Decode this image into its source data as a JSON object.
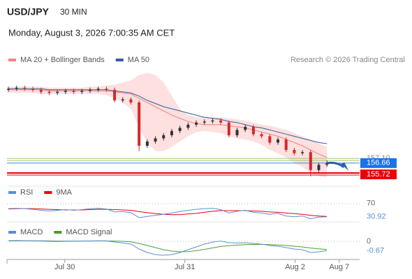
{
  "header": {
    "symbol": "USD/JPY",
    "timeframe": "30 MIN",
    "datetime": "Monday, August 3, 2026 7:00:35 AM CET",
    "source": "Research © 2026 Trading Central"
  },
  "chart_data": [
    {
      "type": "candlestick",
      "open": [
        163.6,
        163.7,
        163.8,
        163.7,
        163.6,
        163.4,
        163.3,
        163.4,
        163.5,
        163.4,
        163.5,
        163.6,
        163.7,
        163.6,
        162.6,
        162.7,
        162.4,
        158.3,
        158.7,
        159.0,
        159.3,
        159.7,
        160.0,
        160.3,
        160.5,
        160.6,
        160.7,
        160.5,
        159.3,
        159.8,
        160.1,
        159.4,
        159.2,
        158.6,
        158.9,
        157.9,
        157.6,
        157.7,
        156.0,
        156.5
      ],
      "high": [
        163.9,
        164.0,
        164.0,
        163.9,
        163.8,
        163.6,
        163.6,
        163.7,
        163.7,
        163.7,
        163.8,
        163.9,
        163.9,
        163.8,
        162.9,
        162.9,
        162.6,
        158.9,
        159.2,
        159.5,
        159.9,
        160.2,
        160.5,
        160.7,
        160.8,
        160.9,
        160.9,
        160.7,
        160.0,
        160.3,
        160.3,
        159.6,
        159.4,
        159.1,
        159.1,
        158.1,
        157.9,
        157.9,
        156.7,
        156.9
      ],
      "low": [
        163.4,
        163.5,
        163.5,
        163.4,
        163.2,
        163.1,
        163.1,
        163.2,
        163.2,
        163.2,
        163.3,
        163.4,
        163.4,
        162.4,
        162.4,
        162.2,
        157.8,
        158.1,
        158.5,
        158.8,
        159.1,
        159.5,
        159.8,
        160.1,
        160.3,
        160.4,
        160.3,
        159.1,
        159.1,
        159.6,
        159.2,
        159.0,
        158.4,
        158.4,
        157.7,
        157.4,
        157.4,
        155.4,
        155.8,
        156.3
      ],
      "close": [
        163.7,
        163.8,
        163.7,
        163.6,
        163.4,
        163.3,
        163.4,
        163.5,
        163.4,
        163.5,
        163.6,
        163.7,
        163.6,
        162.6,
        162.7,
        162.4,
        158.3,
        158.7,
        159.0,
        159.3,
        159.7,
        160.0,
        160.3,
        160.5,
        160.6,
        160.7,
        160.5,
        159.3,
        159.8,
        160.1,
        159.4,
        159.2,
        158.6,
        158.9,
        157.9,
        157.6,
        157.7,
        156.0,
        156.5,
        156.66
      ],
      "up_color": "#333333",
      "down_color": "#d62728",
      "last_color": "#1a73e8",
      "ylim": [
        154.6,
        165.5
      ],
      "xlim": [
        0,
        43
      ],
      "xticks": [
        {
          "value": 6.9,
          "label": "Jul 30"
        },
        {
          "value": 21.6,
          "label": "Jul 31"
        },
        {
          "value": 35.1,
          "label": "Aug 2"
        },
        {
          "value": 40.5,
          "label": "Aug 7"
        }
      ],
      "series": [
        {
          "name": "MA 20 + Bollinger Bands",
          "color": "#f4827e",
          "band_color": "#fde0df",
          "values": [
            163.6,
            163.6,
            163.6,
            163.6,
            163.6,
            163.5,
            163.5,
            163.5,
            163.5,
            163.5,
            163.5,
            163.5,
            163.5,
            163.4,
            163.3,
            163.2,
            162.8,
            162.4,
            162.0,
            161.6,
            161.2,
            160.9,
            160.6,
            160.4,
            160.3,
            160.3,
            160.3,
            160.2,
            160.1,
            160.0,
            159.8,
            159.6,
            159.4,
            159.2,
            158.9,
            158.6,
            158.3,
            157.9,
            157.5,
            157.2
          ],
          "upper": [
            163.9,
            163.9,
            163.9,
            163.9,
            163.9,
            163.8,
            163.8,
            163.8,
            163.8,
            163.8,
            163.9,
            163.9,
            164.0,
            164.1,
            164.3,
            164.5,
            165.0,
            165.2,
            165.0,
            164.3,
            163.0,
            161.8,
            161.2,
            161.0,
            161.0,
            161.0,
            161.0,
            160.9,
            160.8,
            160.7,
            160.5,
            160.3,
            160.2,
            160.0,
            159.8,
            159.5,
            159.2,
            158.9,
            158.5,
            158.2
          ],
          "lower": [
            163.3,
            163.3,
            163.3,
            163.3,
            163.2,
            163.2,
            163.2,
            163.2,
            163.2,
            163.2,
            163.2,
            163.2,
            163.1,
            162.8,
            162.4,
            161.8,
            160.0,
            158.6,
            157.8,
            157.8,
            158.2,
            158.7,
            159.2,
            159.6,
            159.7,
            159.6,
            159.5,
            159.2,
            159.0,
            158.9,
            158.7,
            158.4,
            157.9,
            157.6,
            157.2,
            156.7,
            156.3,
            155.7,
            155.4,
            155.3
          ]
        },
        {
          "name": "MA 50",
          "color": "#2f5a9e",
          "values": [
            163.7,
            163.7,
            163.7,
            163.7,
            163.7,
            163.6,
            163.6,
            163.6,
            163.6,
            163.6,
            163.6,
            163.6,
            163.6,
            163.5,
            163.4,
            163.3,
            163.0,
            162.6,
            162.3,
            162.0,
            161.8,
            161.6,
            161.4,
            161.2,
            161.0,
            160.9,
            160.8,
            160.6,
            160.5,
            160.3,
            160.1,
            160.0,
            159.8,
            159.6,
            159.4,
            159.2,
            159.0,
            158.8,
            158.6,
            158.5
          ]
        }
      ],
      "levels": [
        {
          "value": 157.1,
          "label": "157.10",
          "color": "#9ccc65"
        },
        {
          "value": 155.72,
          "color": "#e8000b"
        }
      ]
    },
    {
      "type": "line",
      "ylim": [
        20,
        80
      ],
      "yticks": [
        70
      ],
      "series": [
        {
          "name": "RSI",
          "color": "#5b8fd6",
          "values": [
            55,
            56,
            55,
            53,
            50,
            48,
            50,
            52,
            50,
            52,
            55,
            56,
            54,
            45,
            46,
            43,
            28,
            32,
            35,
            38,
            42,
            46,
            50,
            53,
            55,
            56,
            52,
            42,
            47,
            50,
            44,
            42,
            38,
            41,
            33,
            31,
            33,
            25,
            30,
            30.92
          ]
        },
        {
          "name": "9MA",
          "color": "#e8000b",
          "values": [
            54,
            55,
            55,
            55,
            54,
            53,
            52,
            51,
            51,
            51,
            52,
            53,
            53,
            52,
            51,
            50,
            46,
            43,
            40,
            38,
            37,
            37,
            39,
            41,
            44,
            47,
            49,
            49,
            49,
            49,
            48,
            47,
            45,
            44,
            42,
            40,
            38,
            35,
            33,
            32
          ]
        }
      ]
    },
    {
      "type": "line",
      "ylim": [
        -1.3,
        0.4
      ],
      "yticks": [
        0
      ],
      "series": [
        {
          "name": "MACD",
          "color": "#5b8fd6",
          "values": [
            0.05,
            0.06,
            0.05,
            0.04,
            0.02,
            0,
            -0.01,
            0,
            0.01,
            0.02,
            0.03,
            0.04,
            0.03,
            -0.05,
            -0.12,
            -0.2,
            -0.55,
            -0.8,
            -0.95,
            -1.0,
            -0.95,
            -0.8,
            -0.6,
            -0.4,
            -0.2,
            -0.05,
            0.02,
            -0.1,
            -0.12,
            -0.1,
            -0.15,
            -0.2,
            -0.3,
            -0.35,
            -0.45,
            -0.55,
            -0.6,
            -0.8,
            -0.75,
            -0.67
          ]
        },
        {
          "name": "MACD Signal",
          "color": "#4aa02c",
          "values": [
            0.03,
            0.04,
            0.04,
            0.04,
            0.04,
            0.03,
            0.02,
            0.02,
            0.02,
            0.02,
            0.02,
            0.03,
            0.03,
            0.02,
            0,
            -0.04,
            -0.15,
            -0.3,
            -0.45,
            -0.6,
            -0.7,
            -0.75,
            -0.74,
            -0.67,
            -0.58,
            -0.47,
            -0.37,
            -0.31,
            -0.27,
            -0.24,
            -0.22,
            -0.22,
            -0.24,
            -0.26,
            -0.3,
            -0.35,
            -0.4,
            -0.48,
            -0.54,
            -0.58
          ]
        }
      ]
    }
  ]
}
